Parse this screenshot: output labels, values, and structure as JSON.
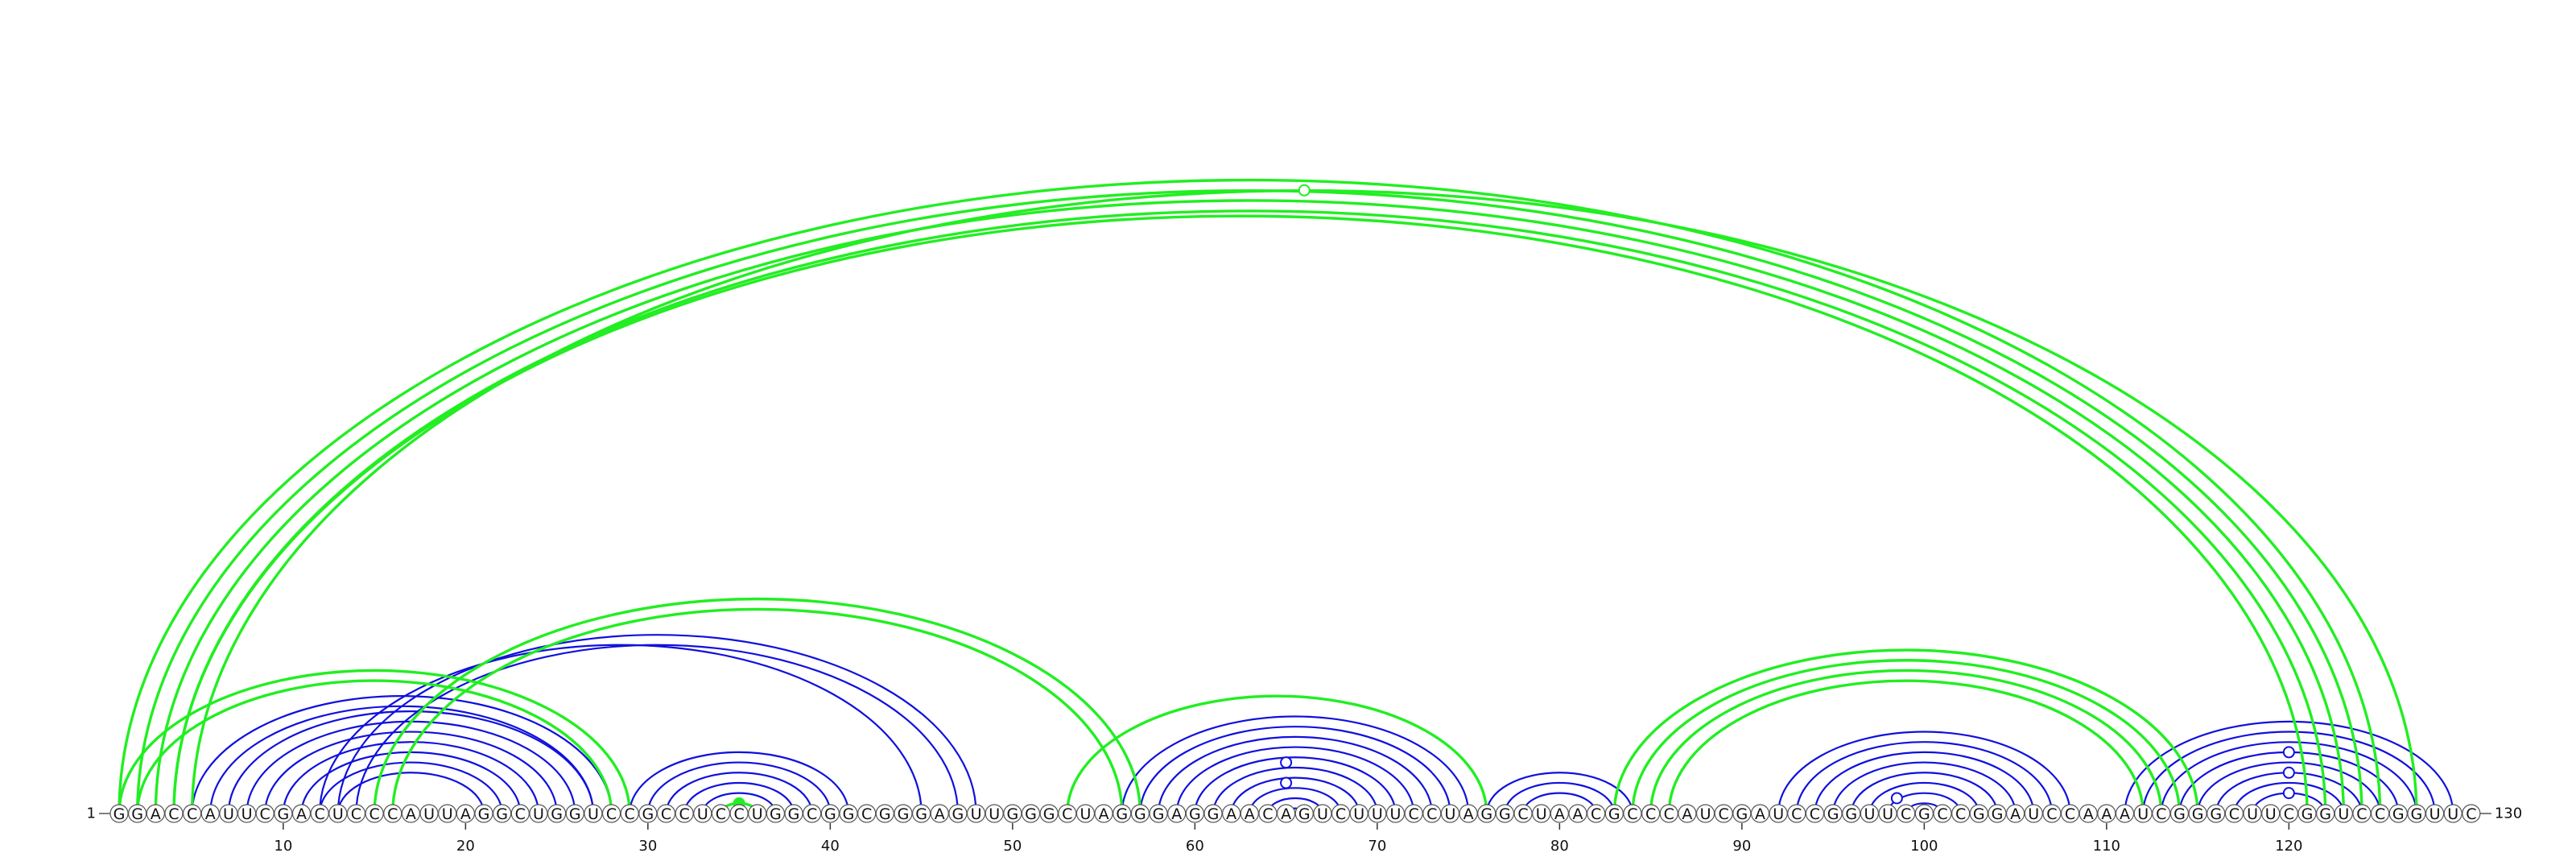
{
  "sequence": "GGACCAUUCGACUCCCAUUAGGCUGGUCCGCCUCCUGGCGGCGGGAGUUGGGCUAGGGAGGAACAGUCUUUCCUAGGCUAACGCCCAUCGAUCCGGUUCGCCGGAUCCAAAUCGGGCUUCGGUCCGGUUC",
  "start_label": "1",
  "end_label": "130",
  "ticks": [
    10,
    20,
    30,
    40,
    50,
    60,
    70,
    80,
    90,
    100,
    110,
    120
  ],
  "colors": {
    "green": "#22ee22",
    "blue": "#1010dd"
  },
  "blue_helices": [
    {
      "i": 5,
      "j": 28,
      "len": 2
    },
    {
      "i": 7,
      "j": 27,
      "len": 7
    },
    {
      "i": 12,
      "j": 45,
      "len": 1
    },
    {
      "i": 13,
      "j": 48,
      "len": 2
    },
    {
      "i": 29,
      "j": 41,
      "len": 6
    },
    {
      "i": 56,
      "j": 75,
      "len": 10
    },
    {
      "i": 76,
      "j": 84,
      "len": 3
    },
    {
      "i": 92,
      "j": 108,
      "len": 8
    },
    {
      "i": 111,
      "j": 129,
      "len": 8
    }
  ],
  "green_helices": [
    {
      "i": 1,
      "j": 125,
      "len": 4
    },
    {
      "i": 4,
      "j": 121,
      "len": 1
    },
    {
      "i": 5,
      "j": 127,
      "len": 1
    },
    {
      "i": 1,
      "j": 29,
      "len": 2
    },
    {
      "i": 15,
      "j": 57,
      "len": 2
    },
    {
      "i": 53,
      "j": 76,
      "len": 1
    },
    {
      "i": 83,
      "j": 115,
      "len": 4
    },
    {
      "i": 34,
      "j": 36,
      "len": 1
    }
  ],
  "markers": [
    {
      "i": 5,
      "j": 127,
      "color": "green",
      "filled": false
    },
    {
      "i": 34,
      "j": 36,
      "color": "green",
      "filled": true
    },
    {
      "i": 60,
      "j": 70,
      "color": "blue",
      "filled": false
    },
    {
      "i": 62,
      "j": 68,
      "color": "blue",
      "filled": false
    },
    {
      "i": 97,
      "j": 100,
      "color": "blue",
      "filled": false
    },
    {
      "i": 114,
      "j": 126,
      "color": "blue",
      "filled": false
    },
    {
      "i": 116,
      "j": 124,
      "color": "blue",
      "filled": false
    },
    {
      "i": 118,
      "j": 122,
      "color": "blue",
      "filled": false
    }
  ]
}
